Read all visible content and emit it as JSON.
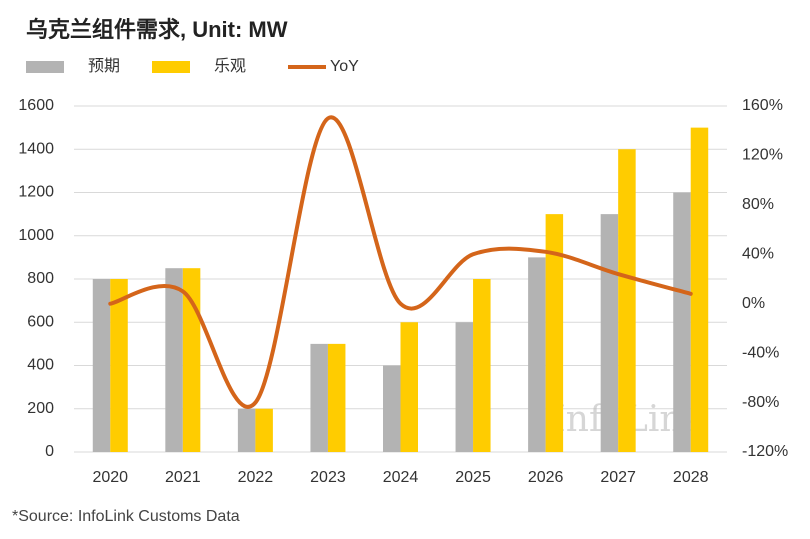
{
  "chart_data": {
    "type": "bar",
    "title": "乌克兰组件需求, Unit: MW",
    "categories": [
      "2020",
      "2021",
      "2022",
      "2023",
      "2024",
      "2025",
      "2026",
      "2027",
      "2028"
    ],
    "series": [
      {
        "name": "预期",
        "color": "#b3b3b3",
        "values": [
          800,
          850,
          200,
          500,
          400,
          600,
          900,
          1100,
          1200
        ]
      },
      {
        "name": "乐观",
        "color": "#ffcc00",
        "values": [
          800,
          850,
          200,
          500,
          600,
          800,
          1100,
          1400,
          1500
        ]
      },
      {
        "name": "YoY",
        "color": "#d4651a",
        "type": "line",
        "axis": "y2",
        "values": [
          0,
          10,
          -80,
          150,
          0,
          40,
          42,
          24,
          8
        ]
      }
    ],
    "ylim": [
      0,
      1600
    ],
    "yticks": [
      0,
      200,
      400,
      600,
      800,
      1000,
      1200,
      1400,
      1600
    ],
    "y2lim": [
      -120,
      160
    ],
    "y2ticks": [
      {
        "value": -120,
        "label": "-120%"
      },
      {
        "value": -80,
        "label": "-80%"
      },
      {
        "value": -40,
        "label": "-40%"
      },
      {
        "value": 0,
        "label": "0%"
      },
      {
        "value": 40,
        "label": "40%"
      },
      {
        "value": 80,
        "label": "80%"
      },
      {
        "value": 120,
        "label": "120%"
      },
      {
        "value": 160,
        "label": "160%"
      }
    ],
    "grid": true,
    "legend": "top-left",
    "watermark": "InfoLink",
    "source": "*Source: InfoLink Customs Data"
  }
}
